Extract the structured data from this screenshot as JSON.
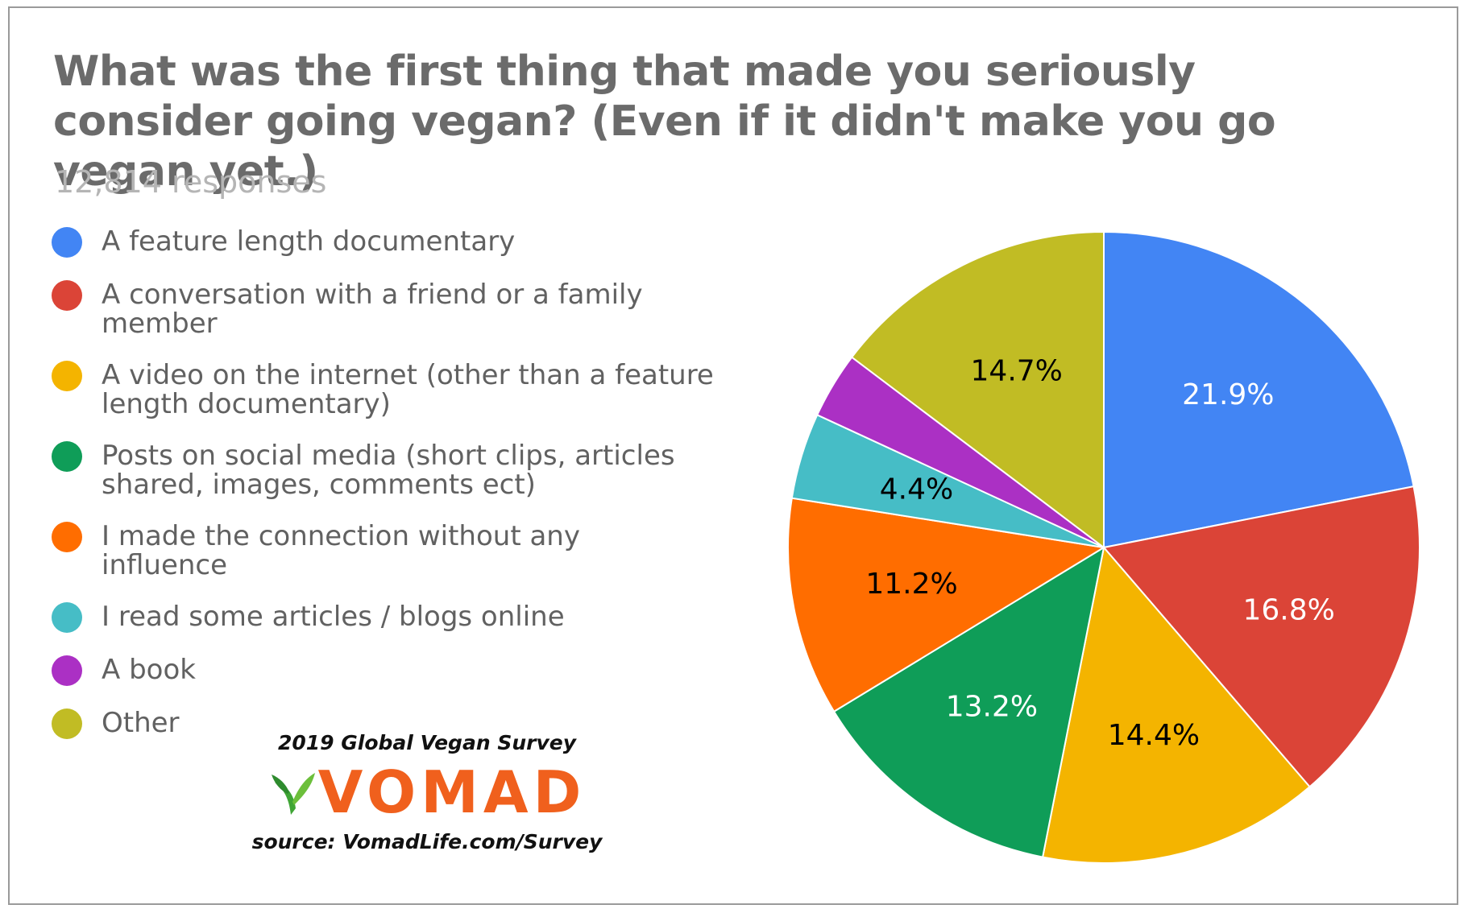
{
  "header": {
    "title": "What was the first thing that made you seriously consider going vegan? (Even if it didn't make you go vegan yet.)",
    "responses": "12,814 responses"
  },
  "branding": {
    "survey_name": "2019 Global Vegan Survey",
    "logo_text": "VOMAD",
    "source": "source: VomadLife.com/Survey"
  },
  "chart_data": {
    "type": "pie",
    "title": "What was the first thing that made you seriously consider going vegan? (Even if it didn't make you go vegan yet.)",
    "legend_position": "left",
    "slices": [
      {
        "label": "A feature length documentary",
        "value": 21.9,
        "display": "21.9%",
        "color": "#4285f4",
        "text_color": "#ffffff"
      },
      {
        "label": "A conversation with a friend or a family member",
        "value": 16.8,
        "display": "16.8%",
        "color": "#db4437",
        "text_color": "#ffffff"
      },
      {
        "label": "A video on the internet (other than a feature length documentary)",
        "value": 14.4,
        "display": "14.4%",
        "color": "#f4b400",
        "text_color": "#000000"
      },
      {
        "label": "Posts on social media (short clips, articles shared, images, comments ect)",
        "value": 13.2,
        "display": "13.2%",
        "color": "#0f9d58",
        "text_color": "#ffffff"
      },
      {
        "label": "I made the connection without any influence",
        "value": 11.2,
        "display": "11.2%",
        "color": "#ff6d00",
        "text_color": "#000000"
      },
      {
        "label": "I read some articles / blogs online",
        "value": 4.4,
        "display": "4.4%",
        "color": "#46bdc6",
        "text_color": "#000000"
      },
      {
        "label": "A book",
        "value": 3.4,
        "display": "",
        "color": "#ab30c4",
        "text_color": "#000000"
      },
      {
        "label": "Other",
        "value": 14.7,
        "display": "14.7%",
        "color": "#c1bc24",
        "text_color": "#000000"
      }
    ]
  }
}
